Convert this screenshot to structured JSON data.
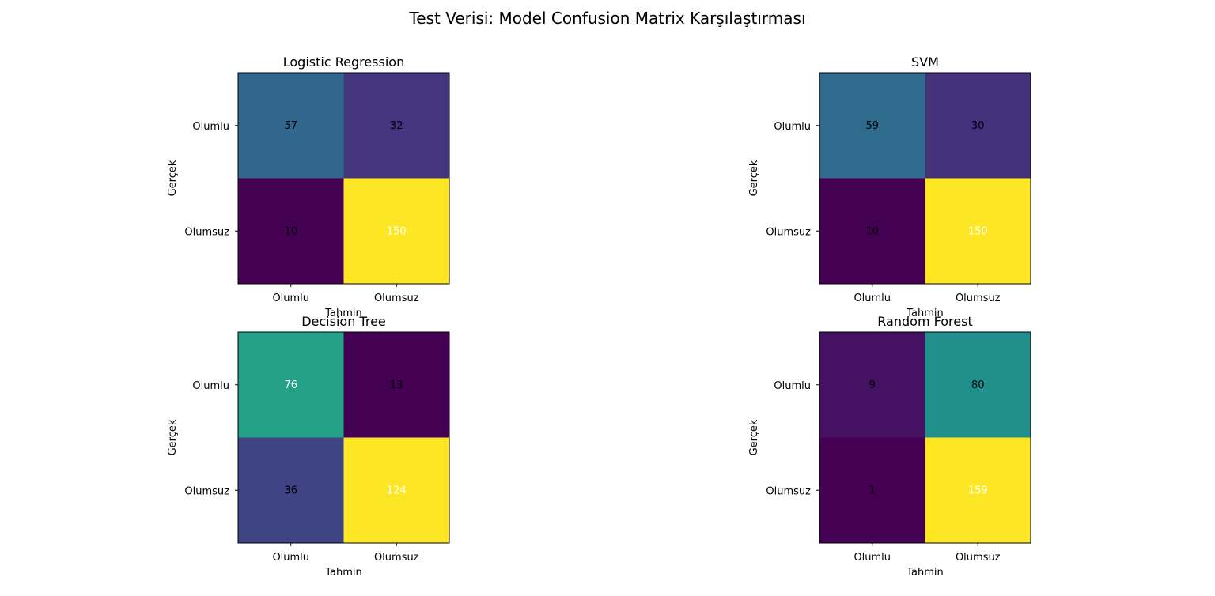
{
  "suptitle": "Test Verisi: Model Confusion Matrix Karşılaştırması",
  "chart_data": [
    {
      "type": "heatmap",
      "title": "Logistic Regression",
      "xlabel": "Tahmin",
      "ylabel": "Gerçek",
      "x_categories": [
        "Olumlu",
        "Olumsuz"
      ],
      "y_categories": [
        "Olumlu",
        "Olumsuz"
      ],
      "values": [
        [
          57,
          32
        ],
        [
          10,
          150
        ]
      ],
      "colormap": "viridis",
      "grid": false
    },
    {
      "type": "heatmap",
      "title": "SVM",
      "xlabel": "Tahmin",
      "ylabel": "Gerçek",
      "x_categories": [
        "Olumlu",
        "Olumsuz"
      ],
      "y_categories": [
        "Olumlu",
        "Olumsuz"
      ],
      "values": [
        [
          59,
          30
        ],
        [
          10,
          150
        ]
      ],
      "colormap": "viridis",
      "grid": false
    },
    {
      "type": "heatmap",
      "title": "Decision Tree",
      "xlabel": "Tahmin",
      "ylabel": "Gerçek",
      "x_categories": [
        "Olumlu",
        "Olumsuz"
      ],
      "y_categories": [
        "Olumlu",
        "Olumsuz"
      ],
      "values": [
        [
          76,
          13
        ],
        [
          36,
          124
        ]
      ],
      "colormap": "viridis",
      "grid": false
    },
    {
      "type": "heatmap",
      "title": "Random Forest",
      "xlabel": "Tahmin",
      "ylabel": "Gerçek",
      "x_categories": [
        "Olumlu",
        "Olumsuz"
      ],
      "y_categories": [
        "Olumlu",
        "Olumsuz"
      ],
      "values": [
        [
          9,
          80
        ],
        [
          1,
          159
        ]
      ],
      "colormap": "viridis",
      "grid": false
    }
  ]
}
